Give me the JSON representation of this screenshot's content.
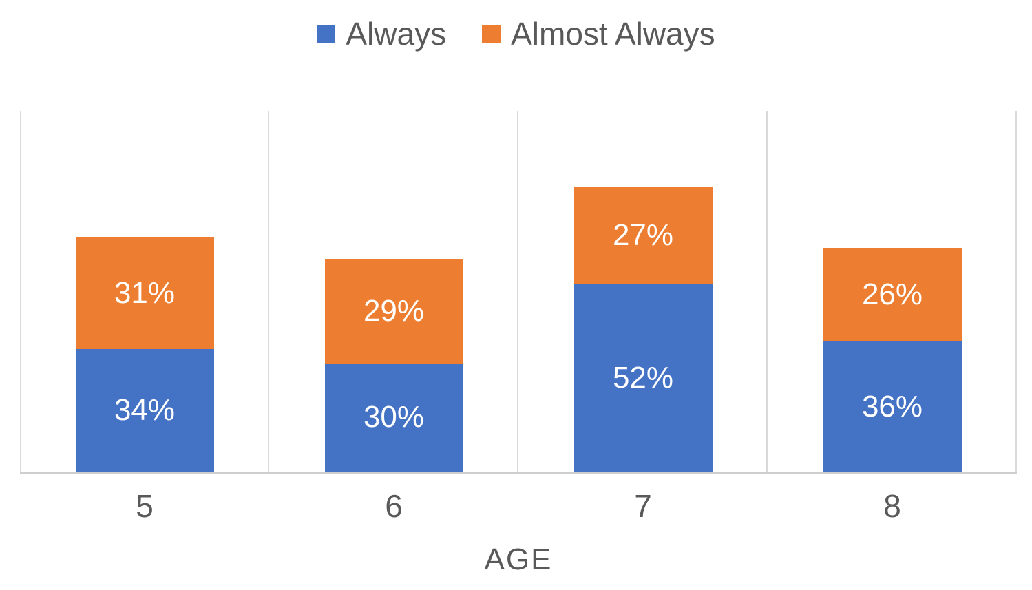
{
  "chart_data": {
    "type": "bar",
    "stacked": true,
    "title": "",
    "xlabel": "AGE",
    "ylabel": "",
    "ylim": [
      0,
      100
    ],
    "legend_position": "top",
    "grid": "vertical-lines-at-category-boundaries",
    "categories": [
      "5",
      "6",
      "7",
      "8"
    ],
    "series": [
      {
        "name": "Always",
        "color": "#4472C4",
        "values": [
          34,
          30,
          52,
          36
        ],
        "labels": [
          "34%",
          "30%",
          "52%",
          "36%"
        ]
      },
      {
        "name": "Almost Always",
        "color": "#ED7D31",
        "values": [
          31,
          29,
          27,
          26
        ],
        "labels": [
          "31%",
          "29%",
          "27%",
          "26%"
        ]
      }
    ],
    "totals": [
      65,
      59,
      79,
      62
    ],
    "data_label_color": "#FFFFFF"
  },
  "colors": {
    "background": "#FFFFFF",
    "text": "#595959",
    "gridline": "#D9D9D9",
    "axis_line": "#CFCFCF",
    "series_always": "#4472C4",
    "series_almost_always": "#ED7D31"
  }
}
